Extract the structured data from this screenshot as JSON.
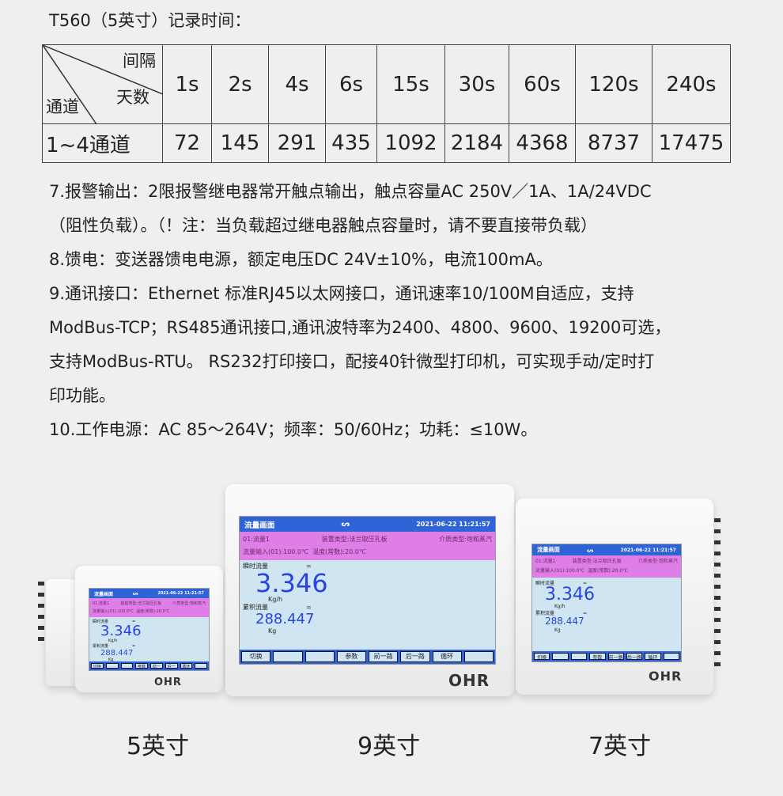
{
  "title": "T560（5英寸）记录时间：",
  "table": {
    "corner": {
      "interval": "间隔",
      "days": "天数",
      "channel": "通道"
    },
    "intervals": [
      "1s",
      "2s",
      "4s",
      "6s",
      "15s",
      "30s",
      "60s",
      "120s",
      "240s"
    ],
    "row_label": "1~4通道",
    "days": [
      "72",
      "145",
      "291",
      "435",
      "1092",
      "2184",
      "4368",
      "8737",
      "17475"
    ]
  },
  "paragraphs": [
    "7.报警输出：2限报警继电器常开触点输出，触点容量AC 250V／1A、1A/24VDC",
    "（阻性负载）。（！注：当负载超过继电器触点容量时，请不要直接带负载）",
    "8.馈电：变送器馈电电源，额定电压DC 24V±10%，电流100mA。",
    "9.通讯接口：Ethernet 标准RJ45以太网接口，通讯速率10/100M自适应，支持",
    "ModBus-TCP；RS485通讯接口,通讯波特率为2400、4800、9600、19200可选，",
    "支持ModBus-RTU。 RS232打印接口，配接40针微型打印机，可实现手动/定时打",
    "印功能。",
    "10.工作电源：AC 85～264V；频率：50/60Hz；功耗：≤10W。"
  ],
  "screen": {
    "title": "流量画面",
    "datetime": "2021-06-22 11:21:57",
    "ch": "01:流量1",
    "device_type": "装置类型:法兰取压孔板",
    "medium": "介质类型:饱和蒸汽",
    "input": "流量输入(01):100.0℃",
    "temp": "温度(常数):20.0℃",
    "inst_label": "瞬时流量",
    "eq": "=",
    "inst_value": "3.346",
    "inst_unit": "Kg/h",
    "total_label": "累积流量",
    "total_value": "288.447",
    "total_unit": "Kg",
    "buttons": [
      "切换",
      "",
      "",
      "参数",
      "前一路",
      "后一路",
      "循环",
      ""
    ]
  },
  "logo": "OHR",
  "captions": [
    "5英寸",
    "9英寸",
    "7英寸"
  ]
}
